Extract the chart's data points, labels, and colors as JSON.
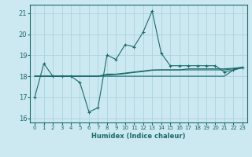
{
  "xlabel": "Humidex (Indice chaleur)",
  "ylabel": "",
  "bg_color": "#cce8f0",
  "grid_color": "#aad4de",
  "line_color": "#1a6b6b",
  "xlim": [
    -0.5,
    23.5
  ],
  "ylim": [
    15.8,
    21.4
  ],
  "yticks": [
    16,
    17,
    18,
    19,
    20,
    21
  ],
  "xticks": [
    0,
    1,
    2,
    3,
    4,
    5,
    6,
    7,
    8,
    9,
    10,
    11,
    12,
    13,
    14,
    15,
    16,
    17,
    18,
    19,
    20,
    21,
    22,
    23
  ],
  "x": [
    0,
    1,
    2,
    3,
    4,
    5,
    6,
    7,
    8,
    9,
    10,
    11,
    12,
    13,
    14,
    15,
    16,
    17,
    18,
    19,
    20,
    21,
    22,
    23
  ],
  "y_main": [
    17.0,
    18.6,
    18.0,
    18.0,
    18.0,
    17.7,
    16.3,
    16.5,
    19.0,
    18.8,
    19.5,
    19.4,
    20.1,
    21.1,
    19.1,
    18.5,
    18.5,
    18.5,
    18.5,
    18.5,
    18.5,
    18.2,
    18.3,
    18.4
  ],
  "y_line1": [
    18.0,
    18.0,
    18.0,
    18.0,
    18.0,
    18.0,
    18.0,
    18.0,
    18.0,
    18.0,
    18.0,
    18.0,
    18.0,
    18.0,
    18.0,
    18.0,
    18.0,
    18.0,
    18.0,
    18.0,
    18.0,
    18.0,
    18.3,
    18.4
  ],
  "y_line2": [
    18.0,
    18.0,
    18.0,
    18.0,
    18.0,
    18.0,
    18.0,
    18.0,
    18.1,
    18.1,
    18.15,
    18.2,
    18.25,
    18.3,
    18.3,
    18.3,
    18.3,
    18.3,
    18.3,
    18.3,
    18.3,
    18.3,
    18.35,
    18.4
  ],
  "y_line3": [
    18.0,
    18.0,
    18.0,
    18.0,
    18.0,
    18.0,
    18.0,
    18.0,
    18.05,
    18.08,
    18.12,
    18.18,
    18.22,
    18.28,
    18.3,
    18.3,
    18.3,
    18.35,
    18.35,
    18.35,
    18.35,
    18.35,
    18.38,
    18.43
  ]
}
